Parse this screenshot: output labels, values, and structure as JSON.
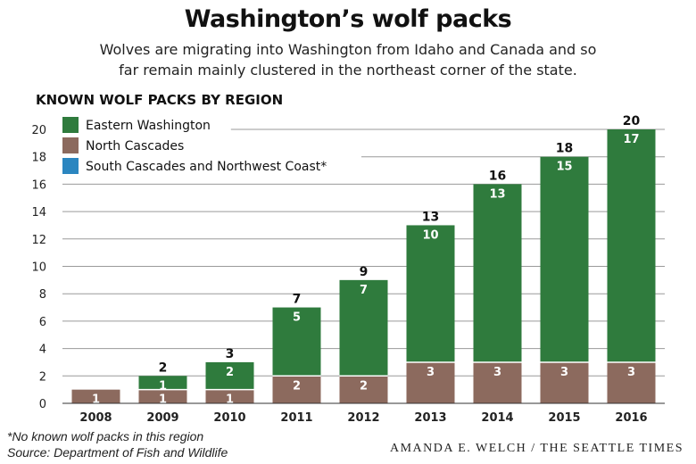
{
  "header": {
    "title": "Washington’s wolf packs",
    "subtitle": "Wolves are migrating into Washington from Idaho and Canada and so far remain mainly clustered in the northeast corner of the state."
  },
  "section_label": "KNOWN WOLF PACKS BY REGION",
  "footer": {
    "note": "*No known wolf packs in this region",
    "source": "Source: Department of Fish and Wildlife",
    "credit": "AMANDA E. WELCH / THE SEATTLE TIMES"
  },
  "chart_data": {
    "type": "bar",
    "stacked": true,
    "categories": [
      "2008",
      "2009",
      "2010",
      "2011",
      "2012",
      "2013",
      "2014",
      "2015",
      "2016"
    ],
    "series": [
      {
        "name": "North Cascades",
        "color": "#8c6a5e",
        "values": [
          1,
          1,
          1,
          2,
          2,
          3,
          3,
          3,
          3
        ]
      },
      {
        "name": "Eastern Washington",
        "color": "#2f7b3d",
        "values": [
          0,
          1,
          2,
          5,
          7,
          10,
          13,
          15,
          17
        ]
      },
      {
        "name": "South Cascades and Northwest Coast*",
        "color": "#2b86c0",
        "values": [
          0,
          0,
          0,
          0,
          0,
          0,
          0,
          0,
          0
        ]
      }
    ],
    "totals": [
      null,
      2,
      3,
      7,
      9,
      13,
      16,
      18,
      20
    ],
    "legend_order": [
      "Eastern Washington",
      "North Cascades",
      "South Cascades and Northwest Coast*"
    ],
    "ylim": [
      0,
      20
    ],
    "yticks": [
      0,
      2,
      4,
      6,
      8,
      10,
      12,
      14,
      16,
      18,
      20
    ],
    "grid": true,
    "legend_position": "top-left"
  }
}
